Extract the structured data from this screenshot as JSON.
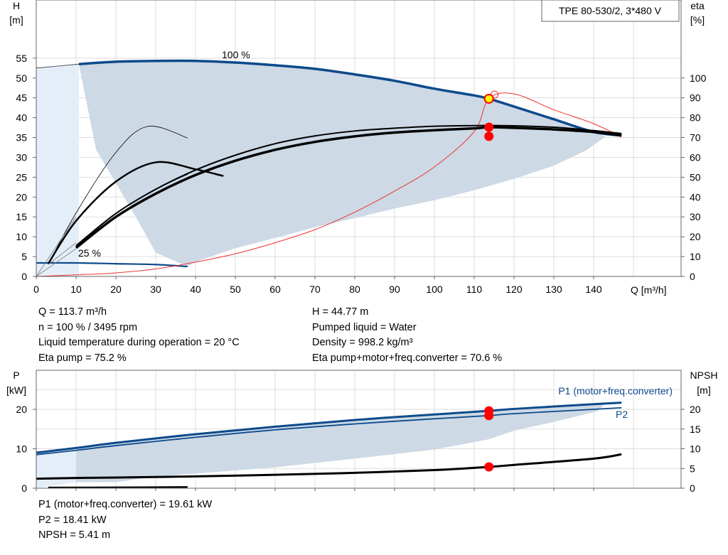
{
  "chart_data": [
    {
      "type": "line",
      "title": "TPE 80-530/2, 3*480 V",
      "xlabel": "Q [m³/h]",
      "ylabel_top": "H",
      "ylabel_unit": "[m]",
      "y2label_top": "eta",
      "y2label_unit": "[%]",
      "xlim": [
        0,
        150
      ],
      "ylim": [
        0,
        62
      ],
      "y2lim": [
        0,
        124
      ],
      "xticks": [
        "0",
        "10",
        "20",
        "30",
        "40",
        "50",
        "60",
        "70",
        "80",
        "90",
        "100",
        "110",
        "120",
        "130",
        "140"
      ],
      "yticks": [
        "0",
        "5",
        "10",
        "15",
        "20",
        "25",
        "30",
        "35",
        "40",
        "45",
        "50",
        "55"
      ],
      "y2ticks": [
        "0",
        "10",
        "20",
        "30",
        "40",
        "50",
        "60",
        "70",
        "80",
        "90",
        "100"
      ],
      "grid": true,
      "annotations": [
        "100 %",
        "25 %"
      ],
      "envelope_polygon": {
        "x": [
          10.7,
          20,
          30,
          40,
          50,
          60,
          70,
          80,
          90,
          100,
          110,
          113.7,
          120,
          130,
          140,
          143,
          138,
          130,
          120,
          110,
          100,
          90,
          80,
          70,
          60,
          50,
          40,
          38,
          30,
          25,
          15,
          10.7
        ],
        "y": [
          53.5,
          54.1,
          54.3,
          54.3,
          53.9,
          53.2,
          52.3,
          50.9,
          49.3,
          47.3,
          45.6,
          44.77,
          42.8,
          39.6,
          36.4,
          35.2,
          31.7,
          27.9,
          24.6,
          21.7,
          19.2,
          17.1,
          14.7,
          12.4,
          9.7,
          7.1,
          3.7,
          2.5,
          6,
          15,
          32,
          53.5
        ]
      },
      "series": [
        {
          "name": "100 %",
          "x": [
            10.7,
            20,
            30,
            40,
            50,
            60,
            70,
            80,
            90,
            100,
            110,
            113.7,
            120,
            130,
            140,
            147
          ],
          "y": [
            53.5,
            54.1,
            54.3,
            54.3,
            53.9,
            53.2,
            52.3,
            50.9,
            49.3,
            47.3,
            45.6,
            44.77,
            42.8,
            39.6,
            36.4,
            35.5
          ]
        },
        {
          "name": "25 %",
          "x": [
            0,
            10,
            20,
            30,
            38
          ],
          "y": [
            3.4,
            3.4,
            3.2,
            3,
            2.5
          ]
        },
        {
          "x": [
            0,
            10.7
          ],
          "y": [
            52.5,
            53.5
          ]
        },
        {
          "x": [
            0,
            10,
            20,
            30,
            40,
            50,
            60,
            70,
            80,
            90,
            100,
            110,
            113.7,
            120,
            130,
            140,
            147
          ],
          "y": [
            0,
            0.4,
            0.9,
            1.9,
            3.6,
            5.7,
            8.5,
            11.8,
            16.2,
            21.5,
            27.6,
            36.5,
            44.77,
            46,
            42,
            38.5,
            35.1
          ]
        },
        {
          "y_axis": "eta",
          "x": [
            10,
            20,
            30,
            40,
            50,
            60,
            70,
            80,
            90,
            100,
            110,
            113.7,
            120,
            130,
            140,
            147
          ],
          "y": [
            14.4,
            30,
            41.7,
            51.1,
            58.3,
            63.8,
            67.8,
            70.6,
            72.5,
            73.7,
            74.6,
            75.2,
            74.9,
            74.1,
            72.8,
            71.1
          ]
        },
        {
          "y_axis": "eta",
          "x": [
            10,
            20,
            30,
            40,
            50,
            60,
            70,
            80,
            90,
            100,
            110,
            113.7,
            120,
            130,
            140,
            147
          ],
          "y": [
            15.5,
            31.7,
            43.9,
            53.6,
            61.1,
            66.9,
            70.8,
            73.3,
            74.7,
            75.7,
            76,
            76.1,
            75.9,
            75.2,
            73.5,
            72
          ]
        },
        {
          "y_axis": "eta",
          "x": [
            3,
            10,
            20,
            30,
            40,
            47
          ],
          "y": [
            6.4,
            28,
            47.8,
            57.5,
            54,
            50.6
          ]
        },
        {
          "y_axis": "eta",
          "x": [
            3,
            10,
            20,
            28,
            38
          ],
          "y": [
            6,
            32,
            62.5,
            75.6,
            69.8
          ]
        },
        {
          "y_axis": "eta",
          "x": [
            10,
            20,
            30,
            38
          ],
          "y": [
            15,
            31.7,
            43.9,
            51.6
          ]
        }
      ],
      "operating_points": [
        {
          "x": 113.7,
          "y": 44.77,
          "axis": "H"
        },
        {
          "x": 113.7,
          "y": 75.2,
          "axis": "eta"
        },
        {
          "x": 113.7,
          "y": 70.6,
          "axis": "eta"
        }
      ]
    },
    {
      "type": "line",
      "ylabel_top": "P",
      "ylabel_unit": "[kW]",
      "y2label_top": "NPSH",
      "y2label_unit": "[m]",
      "xlim": [
        0,
        150
      ],
      "ylim": [
        0,
        25
      ],
      "y2lim": [
        0,
        25
      ],
      "yticks": [
        "0",
        "10",
        "20"
      ],
      "y2ticks": [
        "0",
        "5",
        "10",
        "15",
        "20"
      ],
      "grid": true,
      "envelope_polygon": {
        "x": [
          10,
          20,
          40,
          60,
          80,
          100,
          113.7,
          120,
          140,
          143,
          141,
          130,
          120,
          113.7,
          100,
          80,
          60,
          40,
          30,
          20,
          10
        ],
        "y": [
          10.2,
          11.5,
          13.7,
          15.6,
          17.3,
          18.7,
          19.61,
          20.3,
          21.3,
          21.6,
          19.5,
          16.8,
          14.6,
          12.4,
          9.8,
          7.5,
          5.3,
          3.7,
          3,
          1.5,
          1.5
        ]
      },
      "series": [
        {
          "name": "P1 (motor+freq.converter)",
          "x": [
            0,
            10,
            20,
            40,
            60,
            80,
            100,
            113.7,
            120,
            140,
            147
          ],
          "y": [
            9,
            10.2,
            11.5,
            13.7,
            15.6,
            17.3,
            18.7,
            19.61,
            20.1,
            21.3,
            21.7
          ]
        },
        {
          "name": "P2",
          "x": [
            0,
            10,
            20,
            40,
            60,
            80,
            100,
            113.7,
            120,
            140,
            147
          ],
          "y": [
            8.5,
            9.6,
            10.8,
            12.9,
            14.8,
            16.3,
            17.6,
            18.41,
            18.9,
            20,
            20.4
          ]
        },
        {
          "y_axis": "NPSH",
          "x": [
            0,
            10,
            20,
            40,
            60,
            80,
            100,
            113.7,
            120,
            140,
            147
          ],
          "y": [
            2.4,
            2.6,
            2.7,
            3,
            3.4,
            3.9,
            4.6,
            5.41,
            5.9,
            7.5,
            8.6
          ]
        },
        {
          "y_axis": "NPSH",
          "x": [
            3,
            20,
            38
          ],
          "y": [
            0.15,
            0.2,
            0.3
          ]
        }
      ],
      "operating_points": [
        {
          "x": 113.7,
          "y": 19.61,
          "axis": "P"
        },
        {
          "x": 113.7,
          "y": 18.41,
          "axis": "P"
        },
        {
          "x": 113.7,
          "y": 5.41,
          "axis": "NPSH"
        }
      ]
    }
  ],
  "info_top_left": [
    "Q = 113.7 m³/h",
    "n = 100 % / 3495 rpm",
    "Liquid temperature during operation = 20 °C",
    "Eta pump = 75.2 %"
  ],
  "info_top_right": [
    "H = 44.77 m",
    "Pumped liquid = Water",
    "Density = 998.2 kg/m³",
    "Eta pump+motor+freq.converter = 70.6 %"
  ],
  "info_bottom": [
    "P1 (motor+freq.converter) = 19.61 kW",
    "P2 = 18.41 kW",
    "NPSH = 5.41 m"
  ],
  "colors": {
    "curve_blue": "#0d4a8b",
    "envelope_fill": "#cdd9e5",
    "light_fill": "#e4eef8",
    "efficiency_line": "#ee3333",
    "point_red": "#ff0000",
    "point_yellow": "#ffff00",
    "grid": "#dddddd"
  }
}
